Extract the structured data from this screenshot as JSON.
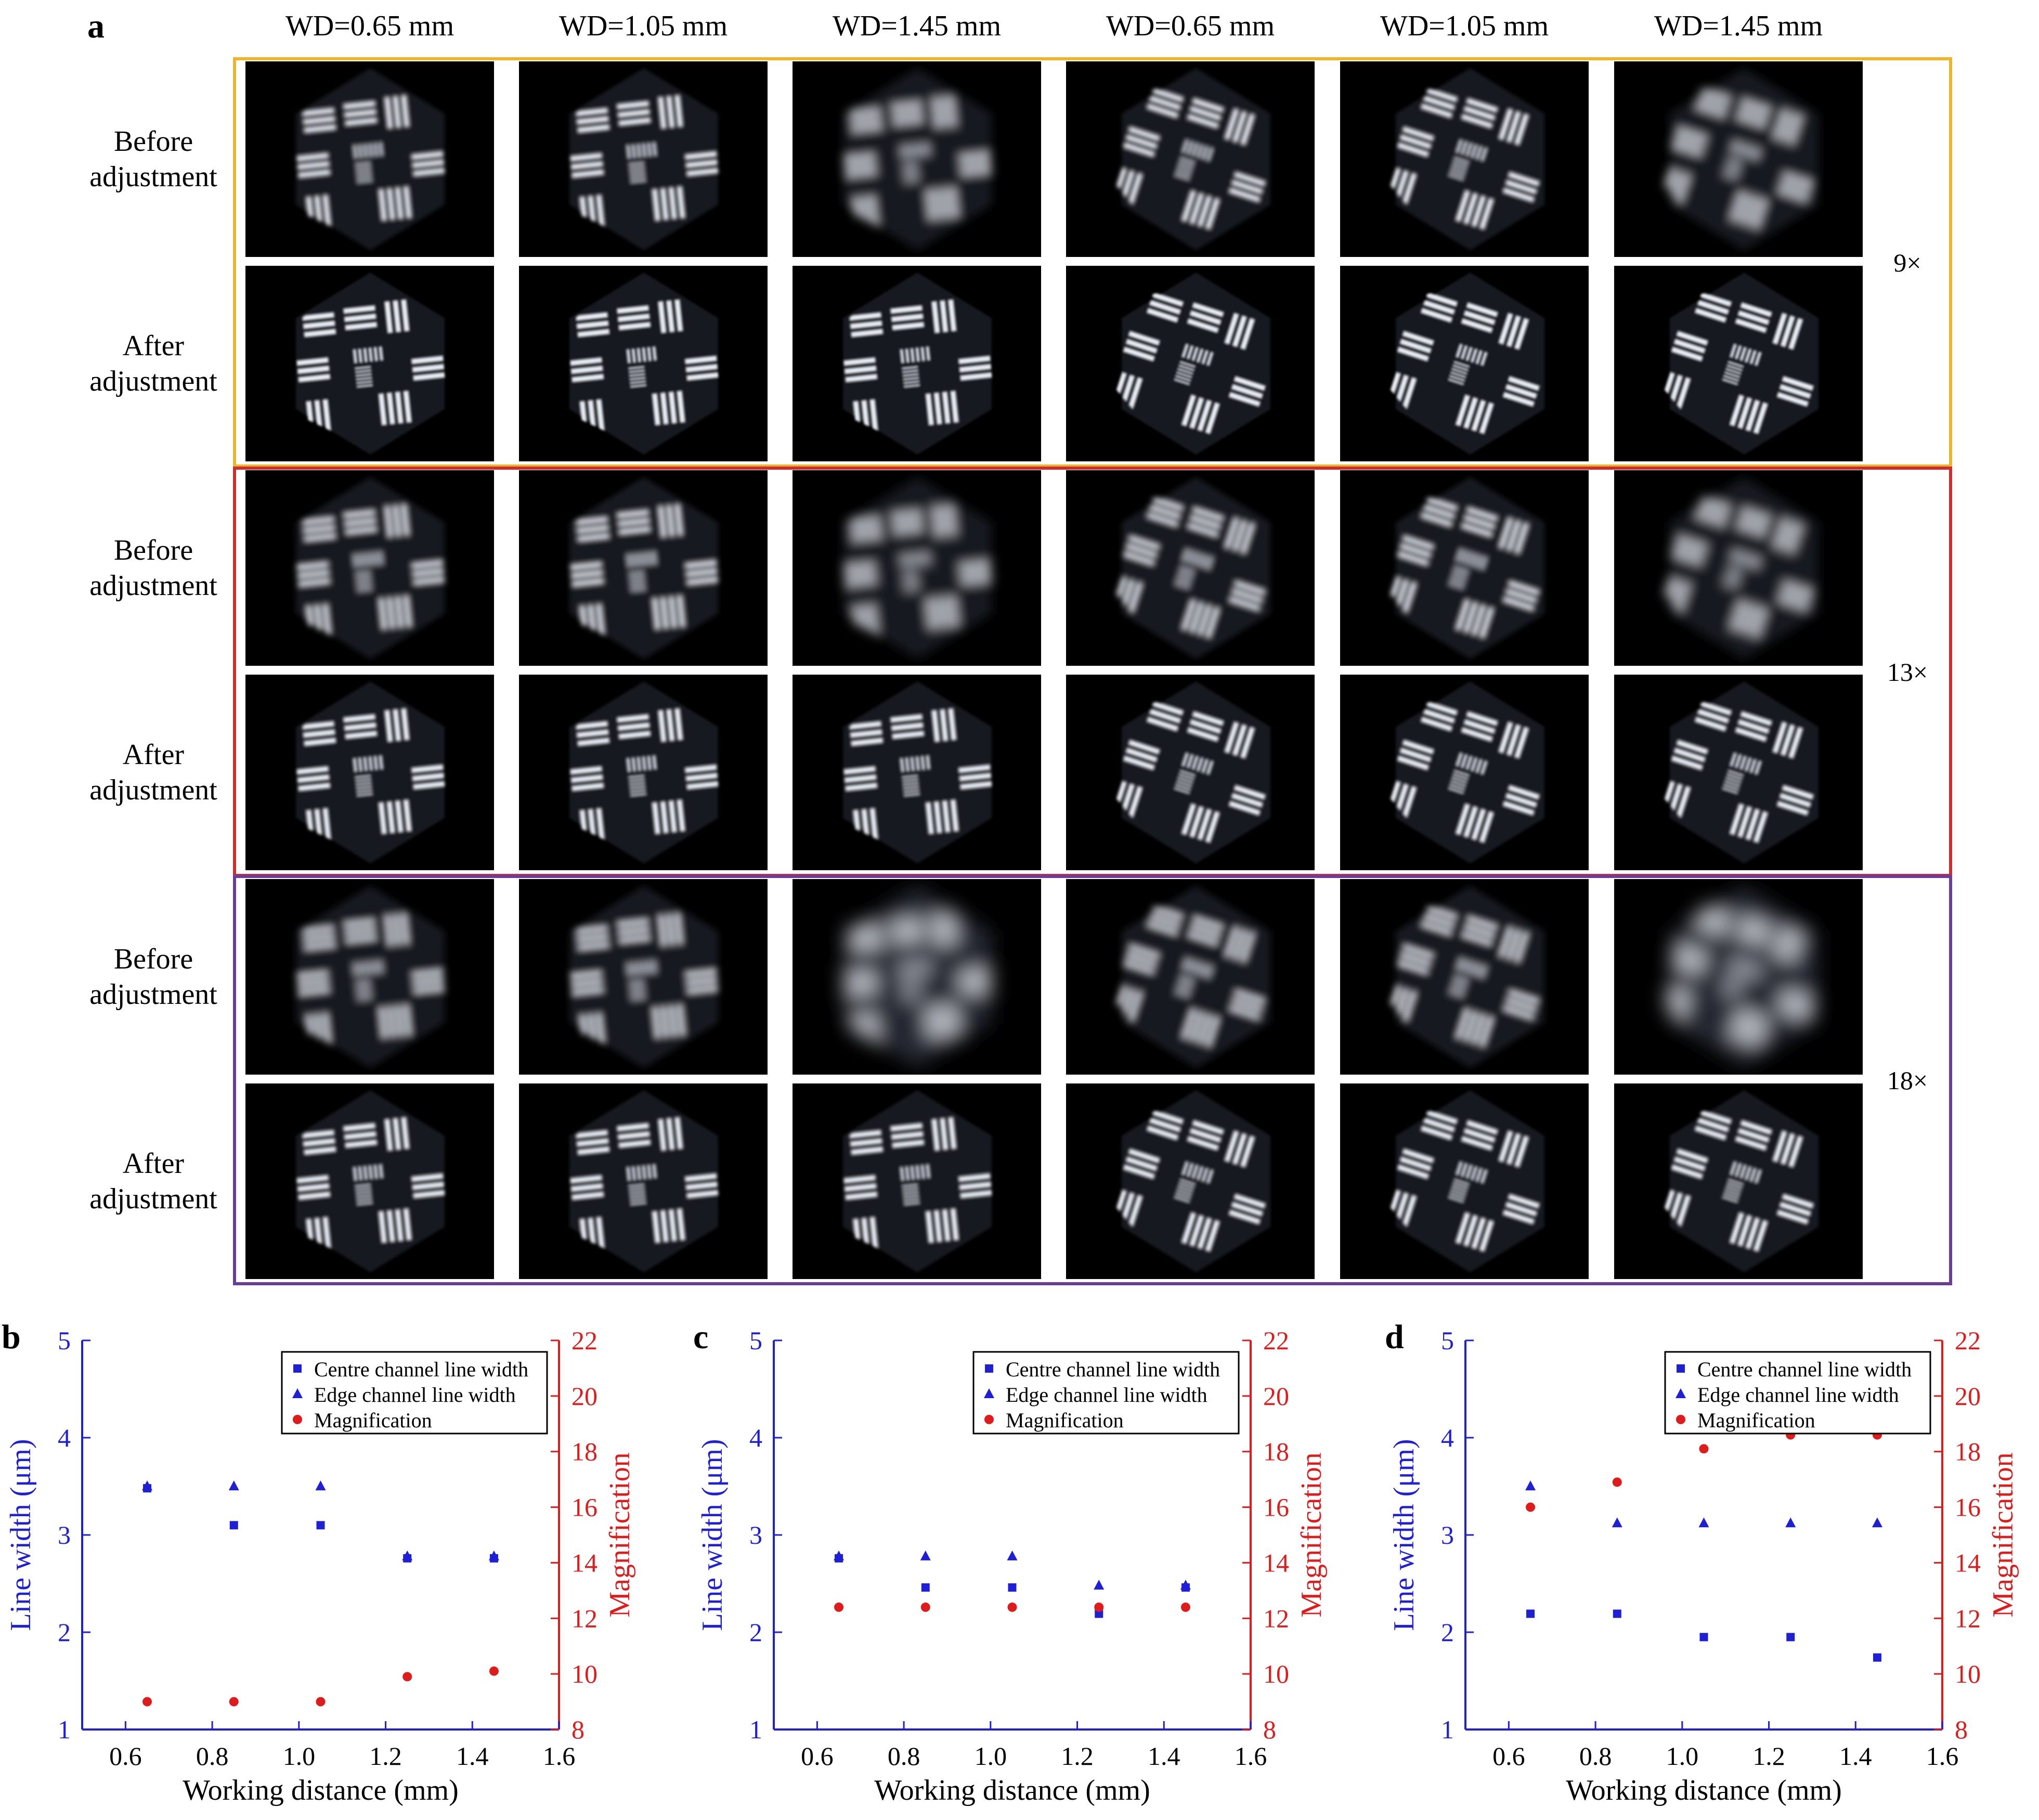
{
  "panel_a": {
    "letter": "a",
    "column_headers": [
      "WD=0.65 mm",
      "WD=1.05 mm",
      "WD=1.45 mm",
      "WD=0.65 mm",
      "WD=1.05 mm",
      "WD=1.45 mm"
    ],
    "row_labels": [
      "Before\nadjustment",
      "After\nadjustment"
    ],
    "groups": [
      {
        "magnification_label": "9×",
        "border_color": "#f0b429"
      },
      {
        "magnification_label": "13×",
        "border_color": "#d62b2b"
      },
      {
        "magnification_label": "18×",
        "border_color": "#6a3d9a"
      }
    ]
  },
  "chart_data": [
    {
      "letter": "b",
      "type": "scatter",
      "x_label": "Working distance (mm)",
      "y_left_label": "Line width (μm)",
      "y_right_label": "Magnification",
      "xlim": [
        0.5,
        1.6
      ],
      "xticks": [
        0.6,
        0.8,
        1.0,
        1.2,
        1.4,
        1.6
      ],
      "y_left_lim": [
        1,
        5
      ],
      "y_left_ticks": [
        1,
        2,
        3,
        4,
        5
      ],
      "y_right_lim": [
        8,
        22
      ],
      "y_right_ticks": [
        8,
        10,
        12,
        14,
        16,
        18,
        20,
        22
      ],
      "legend_position": "top-right",
      "series": [
        {
          "name": "Centre channel line width",
          "axis": "left",
          "marker": "square",
          "color": "#1f1fd6",
          "x": [
            0.65,
            0.85,
            1.05,
            1.25,
            1.45
          ],
          "y": [
            3.48,
            3.1,
            3.1,
            2.76,
            2.76
          ]
        },
        {
          "name": "Edge channel line width",
          "axis": "left",
          "marker": "triangle",
          "color": "#1f1fd6",
          "x": [
            0.65,
            0.85,
            1.05,
            1.25,
            1.45
          ],
          "y": [
            3.48,
            3.48,
            3.48,
            2.76,
            2.76
          ]
        },
        {
          "name": "Magnification",
          "axis": "right",
          "marker": "circle",
          "color": "#e01b1b",
          "x": [
            0.65,
            0.85,
            1.05,
            1.25,
            1.45
          ],
          "y": [
            9.0,
            9.0,
            9.0,
            9.9,
            10.1
          ]
        }
      ]
    },
    {
      "letter": "c",
      "type": "scatter",
      "x_label": "Working distance (mm)",
      "y_left_label": "Line width (μm)",
      "y_right_label": "Magnification",
      "xlim": [
        0.5,
        1.6
      ],
      "xticks": [
        0.6,
        0.8,
        1.0,
        1.2,
        1.4,
        1.6
      ],
      "y_left_lim": [
        1,
        5
      ],
      "y_left_ticks": [
        1,
        2,
        3,
        4,
        5
      ],
      "y_right_lim": [
        8,
        22
      ],
      "y_right_ticks": [
        8,
        10,
        12,
        14,
        16,
        18,
        20,
        22
      ],
      "legend_position": "top-right",
      "series": [
        {
          "name": "Centre channel line width",
          "axis": "left",
          "marker": "square",
          "color": "#1f1fd6",
          "x": [
            0.65,
            0.85,
            1.05,
            1.25,
            1.45
          ],
          "y": [
            2.76,
            2.46,
            2.46,
            2.19,
            2.46
          ]
        },
        {
          "name": "Edge channel line width",
          "axis": "left",
          "marker": "triangle",
          "color": "#1f1fd6",
          "x": [
            0.65,
            0.85,
            1.05,
            1.25,
            1.45
          ],
          "y": [
            2.76,
            2.76,
            2.76,
            2.46,
            2.46
          ]
        },
        {
          "name": "Magnification",
          "axis": "right",
          "marker": "circle",
          "color": "#e01b1b",
          "x": [
            0.65,
            0.85,
            1.05,
            1.25,
            1.45
          ],
          "y": [
            12.4,
            12.4,
            12.4,
            12.4,
            12.4
          ]
        }
      ]
    },
    {
      "letter": "d",
      "type": "scatter",
      "x_label": "Working distance (mm)",
      "y_left_label": "Line width (μm)",
      "y_right_label": "Magnification",
      "xlim": [
        0.5,
        1.6
      ],
      "xticks": [
        0.6,
        0.8,
        1.0,
        1.2,
        1.4,
        1.6
      ],
      "y_left_lim": [
        1,
        5
      ],
      "y_left_ticks": [
        1,
        2,
        3,
        4,
        5
      ],
      "y_right_lim": [
        8,
        22
      ],
      "y_right_ticks": [
        8,
        10,
        12,
        14,
        16,
        18,
        20,
        22
      ],
      "legend_position": "top-right",
      "series": [
        {
          "name": "Centre channel line width",
          "axis": "left",
          "marker": "square",
          "color": "#1f1fd6",
          "x": [
            0.65,
            0.85,
            1.05,
            1.25,
            1.45
          ],
          "y": [
            2.19,
            2.19,
            1.95,
            1.95,
            1.74
          ]
        },
        {
          "name": "Edge channel line width",
          "axis": "left",
          "marker": "triangle",
          "color": "#1f1fd6",
          "x": [
            0.65,
            0.85,
            1.05,
            1.25,
            1.45
          ],
          "y": [
            3.48,
            3.1,
            3.1,
            3.1,
            3.1
          ]
        },
        {
          "name": "Magnification",
          "axis": "right",
          "marker": "circle",
          "color": "#e01b1b",
          "x": [
            0.65,
            0.85,
            1.05,
            1.25,
            1.45
          ],
          "y": [
            16.0,
            16.9,
            18.1,
            18.6,
            18.6
          ]
        }
      ]
    }
  ]
}
